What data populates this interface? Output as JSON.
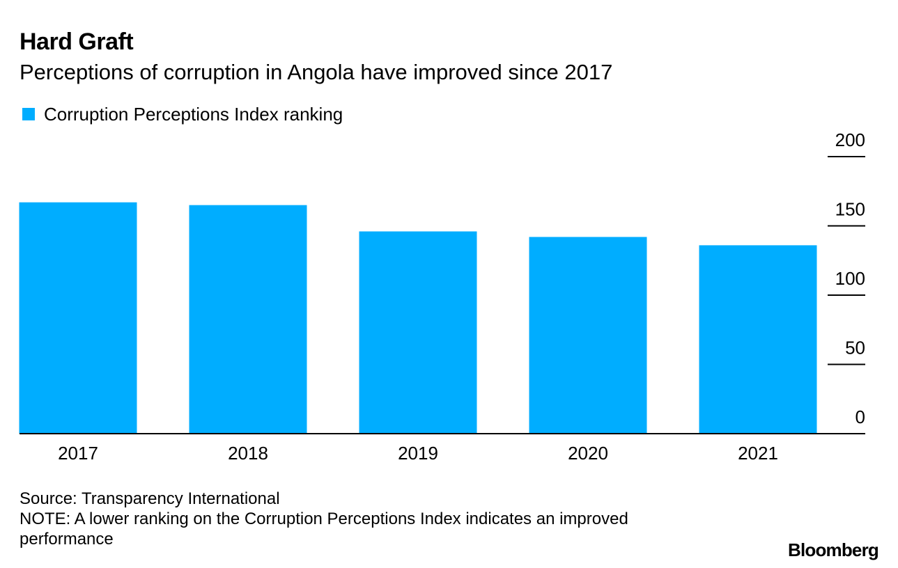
{
  "chart_data": {
    "type": "bar",
    "title": "Hard Graft",
    "subtitle": "Perceptions of corruption in Angola have improved since 2017",
    "categories": [
      "2017",
      "2018",
      "2019",
      "2020",
      "2021"
    ],
    "series": [
      {
        "name": "Corruption Perceptions Index ranking",
        "color": "#00adff",
        "values": [
          167,
          165,
          146,
          142,
          136
        ]
      }
    ],
    "ylim": [
      0,
      200
    ],
    "yticks": [
      "0",
      "50",
      "100",
      "150",
      "200"
    ],
    "ytick_values": [
      0,
      50,
      100,
      150,
      200
    ],
    "y_axis_side": "right",
    "legend_position": "top-left",
    "grid": false
  },
  "footer": {
    "source": "Source: Transparency International",
    "note": "NOTE: A lower ranking on the Corruption Perceptions Index indicates an improved performance"
  },
  "brand": "Bloomberg"
}
